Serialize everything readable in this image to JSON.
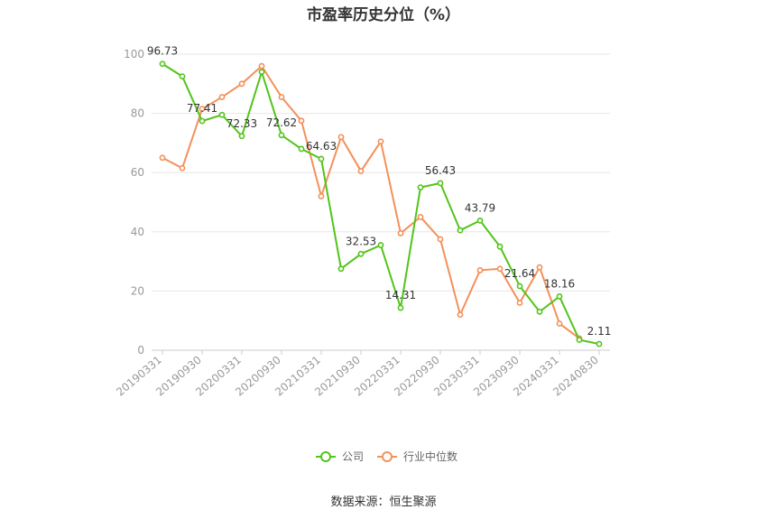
{
  "chart_data": {
    "type": "line",
    "title": "市盈率历史分位（%）",
    "source": "数据来源：恒生聚源",
    "xlabel": "",
    "ylabel": "",
    "ylim": [
      0,
      100
    ],
    "yticks": [
      0,
      20,
      40,
      60,
      80,
      100
    ],
    "x": [
      "20190331",
      "20190630",
      "20190930",
      "20191231",
      "20200331",
      "20200630",
      "20200930",
      "20201231",
      "20210331",
      "20210630",
      "20210930",
      "20211231",
      "20220331",
      "20220630",
      "20220930",
      "20221231",
      "20230331",
      "20230630",
      "20230930",
      "20231231",
      "20240331",
      "20240630",
      "20240830"
    ],
    "xtick_labels": [
      "20190331",
      "20190930",
      "20200331",
      "20200930",
      "20210331",
      "20210930",
      "20220331",
      "20220930",
      "20230331",
      "20230930",
      "20240331",
      "20240830"
    ],
    "grid": true,
    "legend_position": "bottom",
    "series": [
      {
        "name": "公司",
        "color": "#52c41a",
        "values": [
          96.73,
          92.5,
          77.41,
          79.5,
          72.33,
          94.0,
          72.62,
          68.0,
          64.63,
          27.5,
          32.53,
          35.5,
          14.31,
          55.0,
          56.43,
          40.5,
          43.79,
          35.0,
          21.64,
          13.0,
          18.16,
          3.5,
          2.11
        ],
        "labels": {
          "0": "96.73",
          "2": "77.41",
          "4": "72.33",
          "6": "72.62",
          "8": "64.63",
          "10": "32.53",
          "12": "14.31",
          "14": "56.43",
          "16": "43.79",
          "18": "21.64",
          "20": "18.16",
          "22": "2.11"
        }
      },
      {
        "name": "行业中位数",
        "color": "#f4905a",
        "values": [
          65.0,
          61.5,
          81.5,
          85.5,
          90.0,
          96.0,
          85.5,
          77.5,
          52.0,
          72.0,
          60.5,
          70.5,
          39.5,
          45.0,
          37.5,
          12.0,
          27.0,
          27.5,
          16.0,
          28.0,
          9.0,
          4.0,
          null
        ]
      }
    ]
  }
}
